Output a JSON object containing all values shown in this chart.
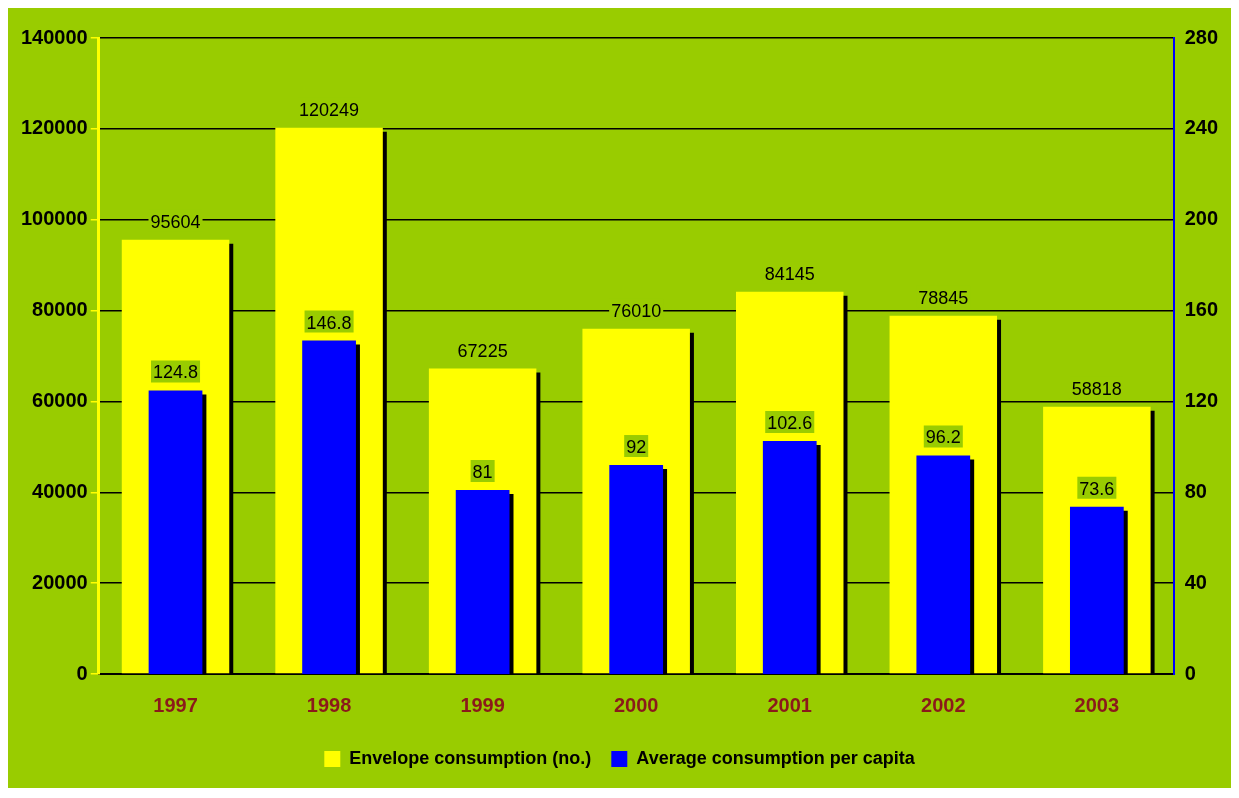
{
  "chart_data": {
    "type": "bar",
    "categories": [
      "1997",
      "1998",
      "1999",
      "2000",
      "2001",
      "2002",
      "2003"
    ],
    "series": [
      {
        "name": "Envelope consumption (no.)",
        "color": "#ffff00",
        "values": [
          95604,
          120249,
          67225,
          76010,
          84145,
          78845,
          58818
        ]
      },
      {
        "name": "Average consumption per capita",
        "color": "#0000ff",
        "values": [
          124.8,
          146.8,
          81,
          92,
          102.6,
          96.2,
          73.6
        ],
        "axis": "y2"
      }
    ],
    "ylim": [
      0,
      140000
    ],
    "yticks": [
      0,
      20000,
      40000,
      60000,
      80000,
      100000,
      120000,
      140000
    ],
    "y2lim": [
      0,
      280
    ],
    "y2ticks": [
      0,
      40,
      80,
      120,
      160,
      200,
      240,
      280
    ],
    "grid": "y",
    "legend": "bottom",
    "data_labels": true
  }
}
